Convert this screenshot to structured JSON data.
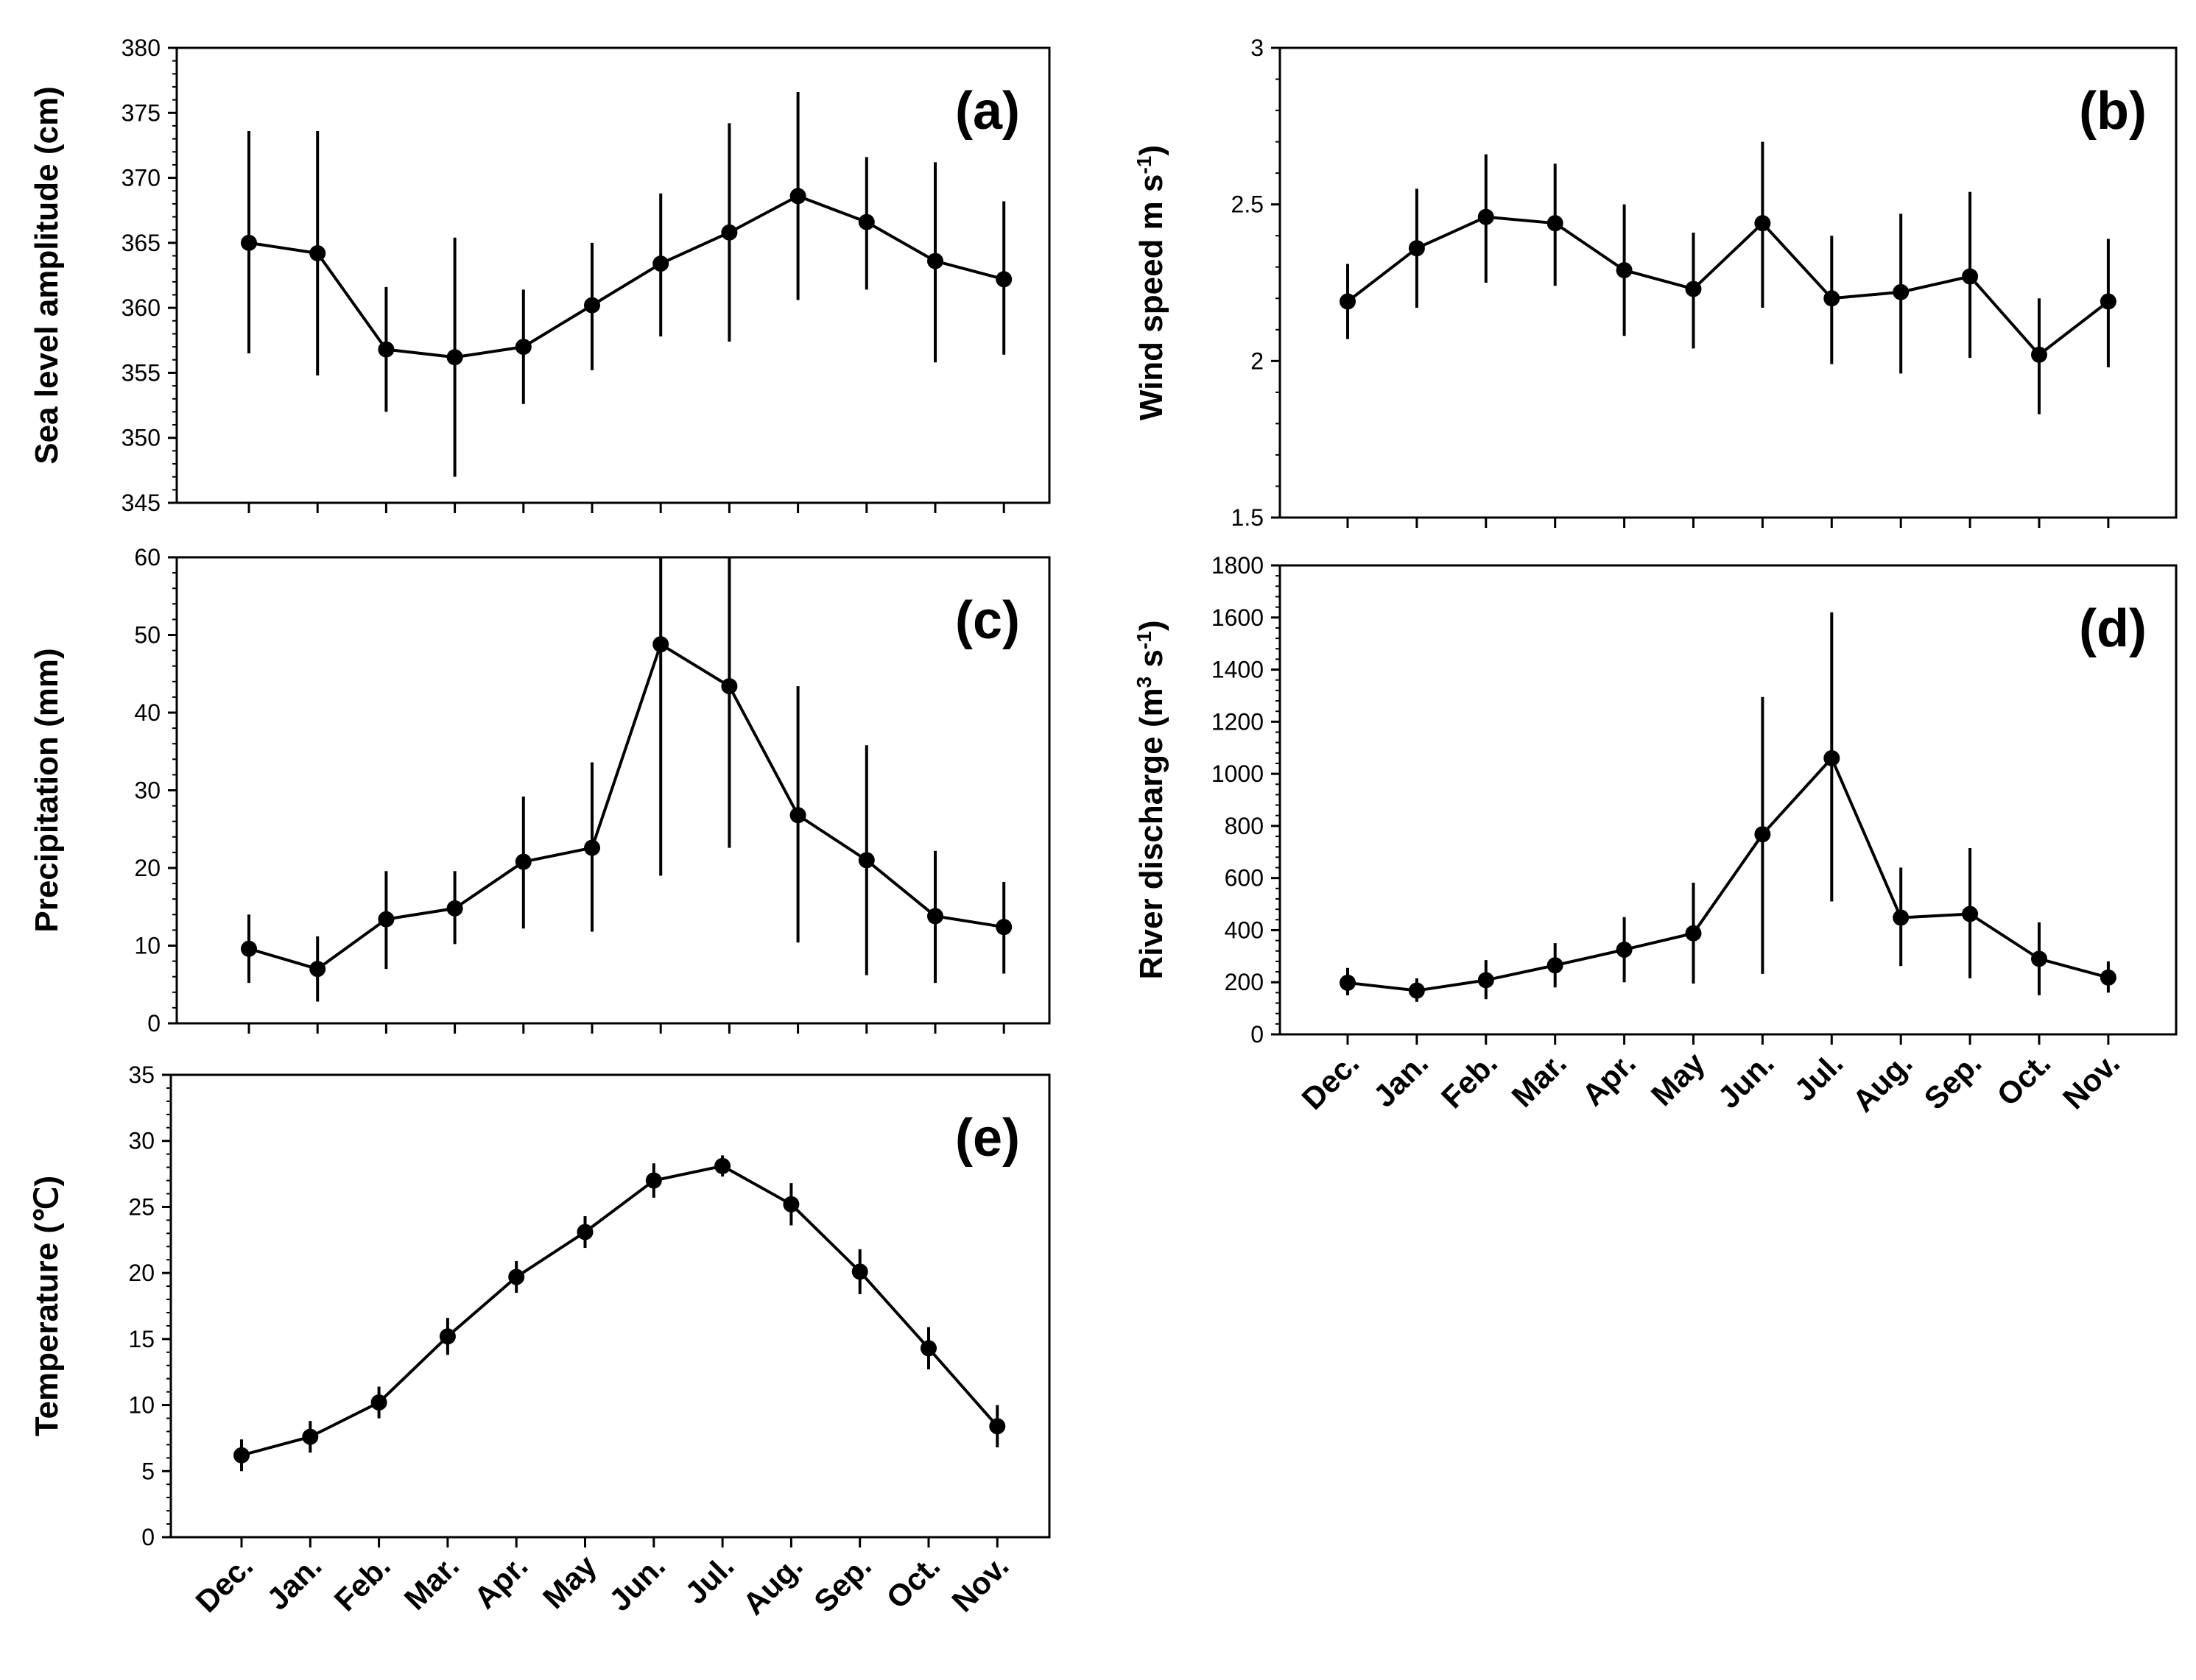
{
  "chart_data": [
    {
      "id": "a",
      "type": "line",
      "panel_label": "(a)",
      "ylabel": "Sea level amplitude (cm)",
      "ylim": [
        345,
        380
      ],
      "yticks": [
        345,
        350,
        355,
        360,
        365,
        370,
        375,
        380
      ],
      "categories": [
        "Dec.",
        "Jan.",
        "Feb.",
        "Mar.",
        "Apr.",
        "May",
        "Jun.",
        "Jul.",
        "Aug.",
        "Sep.",
        "Oct.",
        "Nov."
      ],
      "values": [
        365.0,
        364.2,
        356.8,
        356.2,
        357.0,
        360.2,
        363.4,
        365.8,
        368.6,
        366.6,
        363.6,
        362.2
      ],
      "error_low": [
        356.5,
        354.8,
        352.0,
        347.0,
        352.6,
        355.2,
        357.8,
        357.4,
        360.6,
        361.4,
        355.8,
        356.4
      ],
      "error_high": [
        373.6,
        373.6,
        361.6,
        365.4,
        361.4,
        365.0,
        368.8,
        374.2,
        376.6,
        371.6,
        371.2,
        368.2
      ],
      "legend": "none",
      "grid": false
    },
    {
      "id": "b",
      "type": "line",
      "panel_label": "(b)",
      "ylabel": "Wind speed m s",
      "ylabel_sup": "-1",
      "ylabel_close": ")",
      "ylim": [
        1.5,
        3
      ],
      "yticks": [
        1.5,
        2,
        2.5,
        3
      ],
      "ytick_labels": [
        "1.5",
        "2",
        "2.5",
        "3"
      ],
      "categories": [
        "Dec.",
        "Jan.",
        "Feb.",
        "Mar.",
        "Apr.",
        "May",
        "Jun.",
        "Jul.",
        "Aug.",
        "Sep.",
        "Oct.",
        "Nov."
      ],
      "values": [
        2.19,
        2.36,
        2.46,
        2.44,
        2.29,
        2.23,
        2.44,
        2.2,
        2.22,
        2.27,
        2.02,
        2.19
      ],
      "error_low": [
        2.07,
        2.17,
        2.25,
        2.24,
        2.08,
        2.04,
        2.17,
        1.99,
        1.96,
        2.01,
        1.83,
        1.98
      ],
      "error_high": [
        2.31,
        2.55,
        2.66,
        2.63,
        2.5,
        2.41,
        2.7,
        2.4,
        2.47,
        2.54,
        2.2,
        2.39
      ],
      "legend": "none",
      "grid": false
    },
    {
      "id": "c",
      "type": "line",
      "panel_label": "(c)",
      "ylabel": "Precipitation (mm)",
      "ylim": [
        0,
        60
      ],
      "yticks": [
        0,
        10,
        20,
        30,
        40,
        50,
        60
      ],
      "categories": [
        "Dec.",
        "Jan.",
        "Feb.",
        "Mar.",
        "Apr.",
        "May",
        "Jun.",
        "Jul.",
        "Aug.",
        "Sep.",
        "Oct.",
        "Nov."
      ],
      "values": [
        9.6,
        7.0,
        13.4,
        14.8,
        20.8,
        22.6,
        48.8,
        43.4,
        26.8,
        21.0,
        13.8,
        12.4
      ],
      "error_low": [
        5.2,
        2.8,
        7.0,
        10.2,
        12.2,
        11.8,
        19.0,
        22.6,
        10.4,
        6.2,
        5.2,
        6.4
      ],
      "error_high": [
        14.0,
        11.2,
        19.6,
        19.6,
        29.2,
        33.6,
        60,
        60,
        43.4,
        35.8,
        22.2,
        18.2
      ],
      "legend": "none",
      "grid": false
    },
    {
      "id": "d",
      "type": "line",
      "panel_label": "(d)",
      "ylabel": "River discharge (m",
      "ylabel_sup": "3",
      "ylabel_mid": " s",
      "ylabel_sup2": "-1",
      "ylabel_close": ")",
      "ylim": [
        0,
        1800
      ],
      "yticks": [
        0,
        200,
        400,
        600,
        800,
        1000,
        1200,
        1400,
        1600,
        1800
      ],
      "categories": [
        "Dec.",
        "Jan.",
        "Feb.",
        "Mar.",
        "Apr.",
        "May",
        "Jun.",
        "Jul.",
        "Aug.",
        "Sep.",
        "Oct.",
        "Nov."
      ],
      "values": [
        198,
        168,
        208,
        265,
        325,
        388,
        768,
        1060,
        448,
        462,
        290,
        218
      ],
      "error_low": [
        150,
        125,
        135,
        180,
        200,
        195,
        232,
        510,
        262,
        215,
        150,
        160
      ],
      "error_high": [
        255,
        215,
        285,
        350,
        450,
        582,
        1295,
        1620,
        640,
        715,
        430,
        280
      ],
      "legend": "none",
      "grid": false
    },
    {
      "id": "e",
      "type": "line",
      "panel_label": "(e)",
      "ylabel": "Temperature (℃)",
      "ylim": [
        0,
        35
      ],
      "yticks": [
        0,
        5,
        10,
        15,
        20,
        25,
        30,
        35
      ],
      "categories": [
        "Dec.",
        "Jan.",
        "Feb.",
        "Mar.",
        "Apr.",
        "May",
        "Jun.",
        "Jul.",
        "Aug.",
        "Sep.",
        "Oct.",
        "Nov."
      ],
      "values": [
        6.2,
        7.6,
        10.2,
        15.2,
        19.7,
        23.1,
        27.0,
        28.1,
        25.2,
        20.1,
        14.3,
        8.4
      ],
      "error_low": [
        5.0,
        6.4,
        9.0,
        13.8,
        18.5,
        21.9,
        25.7,
        27.3,
        23.6,
        18.4,
        12.7,
        6.8
      ],
      "error_high": [
        7.4,
        8.8,
        11.4,
        16.6,
        20.9,
        24.3,
        28.3,
        28.9,
        26.8,
        21.8,
        15.9,
        10.0
      ],
      "legend": "none",
      "grid": false
    }
  ],
  "colors": {
    "ink": "#000000",
    "background": "#ffffff"
  }
}
